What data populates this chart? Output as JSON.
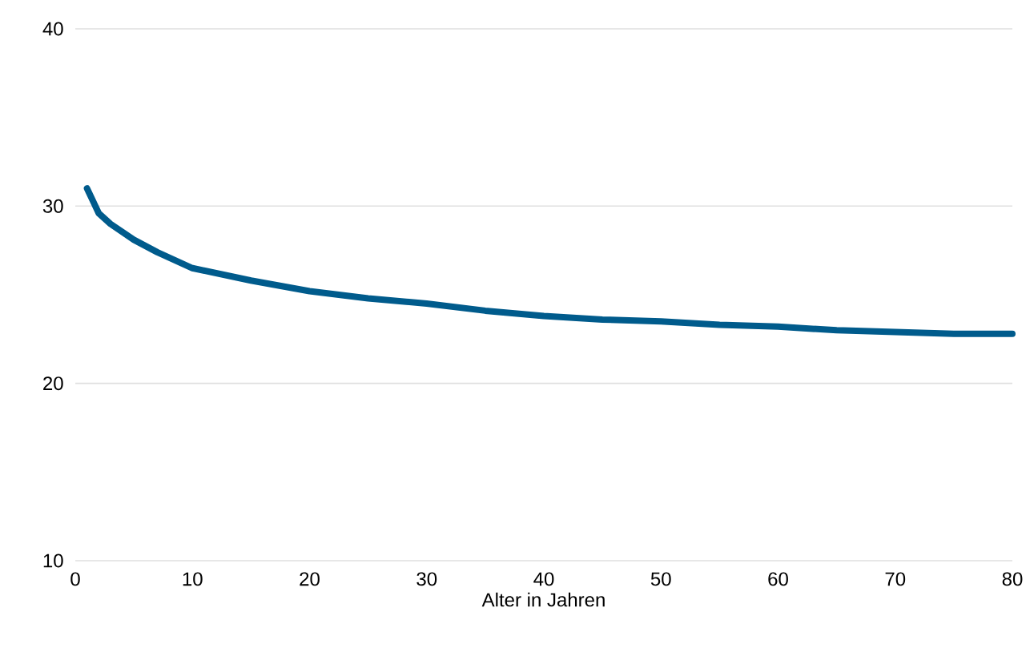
{
  "chart_data": {
    "type": "line",
    "xlabel": "Alter in Jahren",
    "x": [
      1,
      2,
      3,
      5,
      7,
      10,
      15,
      20,
      25,
      30,
      35,
      40,
      45,
      50,
      55,
      60,
      65,
      70,
      75,
      80
    ],
    "series": [
      {
        "color": "#005b8c",
        "values": [
          31,
          29.6,
          29,
          28.1,
          27.4,
          26.5,
          25.8,
          25.2,
          24.8,
          24.5,
          24.1,
          23.8,
          23.6,
          23.5,
          23.3,
          23.2,
          23,
          22.9,
          22.8,
          22.8
        ]
      }
    ],
    "xlim": [
      0,
      80
    ],
    "ylim": [
      10,
      40
    ],
    "xticks": [
      0,
      10,
      20,
      30,
      40,
      50,
      60,
      70,
      80
    ],
    "yticks": [
      10,
      20,
      30,
      40
    ],
    "grid": "y",
    "marker": "none",
    "line_style": "solid"
  }
}
